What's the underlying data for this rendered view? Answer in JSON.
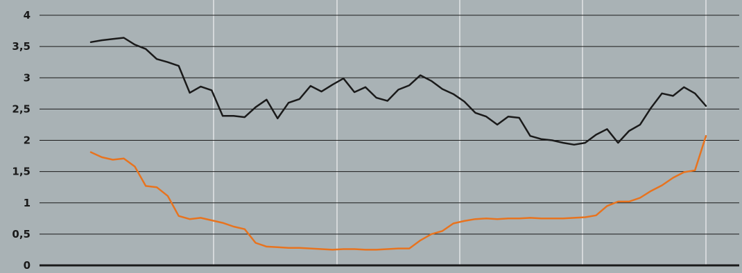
{
  "chart_data": {
    "type": "line",
    "title": "",
    "xlabel": "",
    "ylabel": "",
    "ylim": [
      0,
      4
    ],
    "yticks": [
      0,
      0.5,
      1,
      1.5,
      2,
      2.5,
      3,
      3.5,
      4
    ],
    "ytick_labels": [
      "0",
      "0,5",
      "1",
      "1,5",
      "2",
      "2,5",
      "3",
      "3,5",
      "4"
    ],
    "x_count": 57,
    "x_vertical_grid_every": 11.33,
    "grid": {
      "horizontal": true,
      "vertical": true
    },
    "legend": "none",
    "colors": {
      "background": "#a9b2b5",
      "grid_horizontal": "#1a1a1a",
      "grid_vertical": "#ffffff",
      "axis": "#1a1a1a"
    },
    "series": [
      {
        "color": "#1a1a1a",
        "values": [
          3.57,
          3.6,
          3.62,
          3.64,
          3.53,
          3.46,
          3.3,
          3.25,
          3.19,
          2.76,
          2.86,
          2.8,
          2.39,
          2.39,
          2.37,
          2.53,
          2.65,
          2.35,
          2.6,
          2.66,
          2.87,
          2.78,
          2.89,
          2.99,
          2.77,
          2.85,
          2.68,
          2.63,
          2.81,
          2.88,
          3.04,
          2.95,
          2.82,
          2.74,
          2.62,
          2.44,
          2.38,
          2.25,
          2.38,
          2.36,
          2.07,
          2.02,
          2.0,
          1.96,
          1.93,
          1.96,
          2.09,
          2.18,
          1.96,
          2.15,
          2.25,
          2.52,
          2.75,
          2.71,
          2.85,
          2.75,
          2.55
        ]
      },
      {
        "color": "#e8731e",
        "values": [
          1.81,
          1.73,
          1.69,
          1.71,
          1.58,
          1.27,
          1.25,
          1.11,
          0.79,
          0.74,
          0.76,
          0.72,
          0.68,
          0.62,
          0.58,
          0.36,
          0.3,
          0.29,
          0.28,
          0.28,
          0.27,
          0.26,
          0.25,
          0.26,
          0.26,
          0.25,
          0.25,
          0.26,
          0.27,
          0.27,
          0.4,
          0.5,
          0.55,
          0.67,
          0.71,
          0.74,
          0.75,
          0.74,
          0.75,
          0.75,
          0.76,
          0.75,
          0.75,
          0.75,
          0.76,
          0.77,
          0.8,
          0.95,
          1.02,
          1.02,
          1.08,
          1.19,
          1.28,
          1.4,
          1.49,
          1.52,
          2.07
        ]
      }
    ]
  }
}
